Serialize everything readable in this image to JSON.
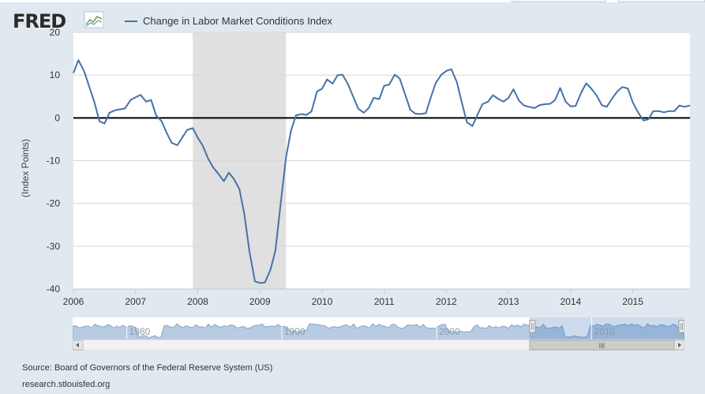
{
  "header": {
    "logo_text": "FRED",
    "logo_icon": "fred-chart-icon",
    "legend_label": "Change in Labor Market Conditions Index"
  },
  "colors": {
    "series": "#4572a7",
    "recession": "#e0e0e0",
    "plot_bg": "#ffffff",
    "page_bg": "#e1e9f0",
    "navigator_series": "#7fa3cc",
    "selection": "#8fb0d6"
  },
  "chart_data": {
    "type": "line",
    "ylabel": "(Index Points)",
    "xlabel": "",
    "ylim": [
      -40,
      20
    ],
    "yticks": [
      20,
      10,
      0,
      -10,
      -20,
      -30,
      -40
    ],
    "xlim": [
      2006.0,
      2015.92
    ],
    "xticks": [
      "2006",
      "2007",
      "2008",
      "2009",
      "2010",
      "2011",
      "2012",
      "2013",
      "2014",
      "2015"
    ],
    "recession": {
      "start": 2007.92,
      "end": 2009.42
    },
    "zero_line": true,
    "grid": "horizontal",
    "series": [
      {
        "name": "Change in Labor Market Conditions Index",
        "x": [
          2006.0,
          2006.08,
          2006.17,
          2006.25,
          2006.33,
          2006.42,
          2006.5,
          2006.58,
          2006.67,
          2006.75,
          2006.83,
          2006.92,
          2007.0,
          2007.08,
          2007.17,
          2007.25,
          2007.33,
          2007.42,
          2007.5,
          2007.58,
          2007.67,
          2007.75,
          2007.83,
          2007.92,
          2008.0,
          2008.08,
          2008.17,
          2008.25,
          2008.33,
          2008.42,
          2008.5,
          2008.58,
          2008.67,
          2008.75,
          2008.83,
          2008.92,
          2009.0,
          2009.08,
          2009.17,
          2009.25,
          2009.33,
          2009.42,
          2009.5,
          2009.58,
          2009.67,
          2009.75,
          2009.83,
          2009.92,
          2010.0,
          2010.08,
          2010.17,
          2010.25,
          2010.33,
          2010.42,
          2010.5,
          2010.58,
          2010.67,
          2010.75,
          2010.83,
          2010.92,
          2011.0,
          2011.08,
          2011.17,
          2011.25,
          2011.33,
          2011.42,
          2011.5,
          2011.58,
          2011.67,
          2011.75,
          2011.83,
          2011.92,
          2012.0,
          2012.08,
          2012.17,
          2012.25,
          2012.33,
          2012.42,
          2012.5,
          2012.58,
          2012.67,
          2012.75,
          2012.83,
          2012.92,
          2013.0,
          2013.08,
          2013.17,
          2013.25,
          2013.33,
          2013.42,
          2013.5,
          2013.58,
          2013.67,
          2013.75,
          2013.83,
          2013.92,
          2014.0,
          2014.08,
          2014.17,
          2014.25,
          2014.33,
          2014.42,
          2014.5,
          2014.58,
          2014.67,
          2014.75,
          2014.83,
          2014.92,
          2015.0,
          2015.08,
          2015.17,
          2015.25,
          2015.33,
          2015.42,
          2015.5,
          2015.58,
          2015.67,
          2015.75,
          2015.83,
          2015.92
        ],
        "y": [
          10.5,
          13.5,
          11.0,
          7.5,
          4.0,
          -0.8,
          -1.3,
          1.2,
          1.8,
          2.0,
          2.2,
          4.2,
          4.8,
          5.4,
          3.8,
          4.2,
          0.6,
          -0.8,
          -3.5,
          -5.8,
          -6.4,
          -4.6,
          -2.8,
          -2.4,
          -4.6,
          -6.5,
          -9.6,
          -11.6,
          -13.0,
          -14.8,
          -12.8,
          -14.2,
          -16.6,
          -22.5,
          -31.0,
          -38.2,
          -38.6,
          -38.5,
          -35.5,
          -31.0,
          -20.5,
          -9.2,
          -3.0,
          0.6,
          0.9,
          0.7,
          1.5,
          6.2,
          6.8,
          9.0,
          8.0,
          10.0,
          10.1,
          7.8,
          5.0,
          2.2,
          1.2,
          2.3,
          4.7,
          4.4,
          7.5,
          7.8,
          10.1,
          9.2,
          5.8,
          1.9,
          1.0,
          0.9,
          1.1,
          4.8,
          8.2,
          10.1,
          11.0,
          11.4,
          8.3,
          3.5,
          -1.0,
          -1.9,
          0.7,
          3.2,
          3.8,
          5.3,
          4.5,
          3.8,
          4.7,
          6.7,
          4.0,
          2.9,
          2.6,
          2.3,
          3.0,
          3.2,
          3.3,
          4.2,
          7.0,
          3.8,
          2.7,
          2.8,
          5.9,
          8.1,
          6.9,
          5.2,
          3.0,
          2.6,
          4.6,
          6.2,
          7.2,
          6.9,
          3.6,
          1.4,
          -0.6,
          -0.3,
          1.6,
          1.6,
          1.3,
          1.6,
          1.6,
          2.9,
          2.6,
          2.9
        ]
      }
    ]
  },
  "navigator": {
    "x_labels": [
      "1980",
      "1990",
      "2000",
      "2010"
    ],
    "x_range": [
      1976.5,
      2016.0
    ],
    "selection": [
      2006.0,
      2016.0
    ],
    "scrollbar_grip": "III"
  },
  "footer": {
    "source": "Source: Board of Governors of the Federal Reserve System (US)",
    "site": "research.stlouisfed.org"
  }
}
